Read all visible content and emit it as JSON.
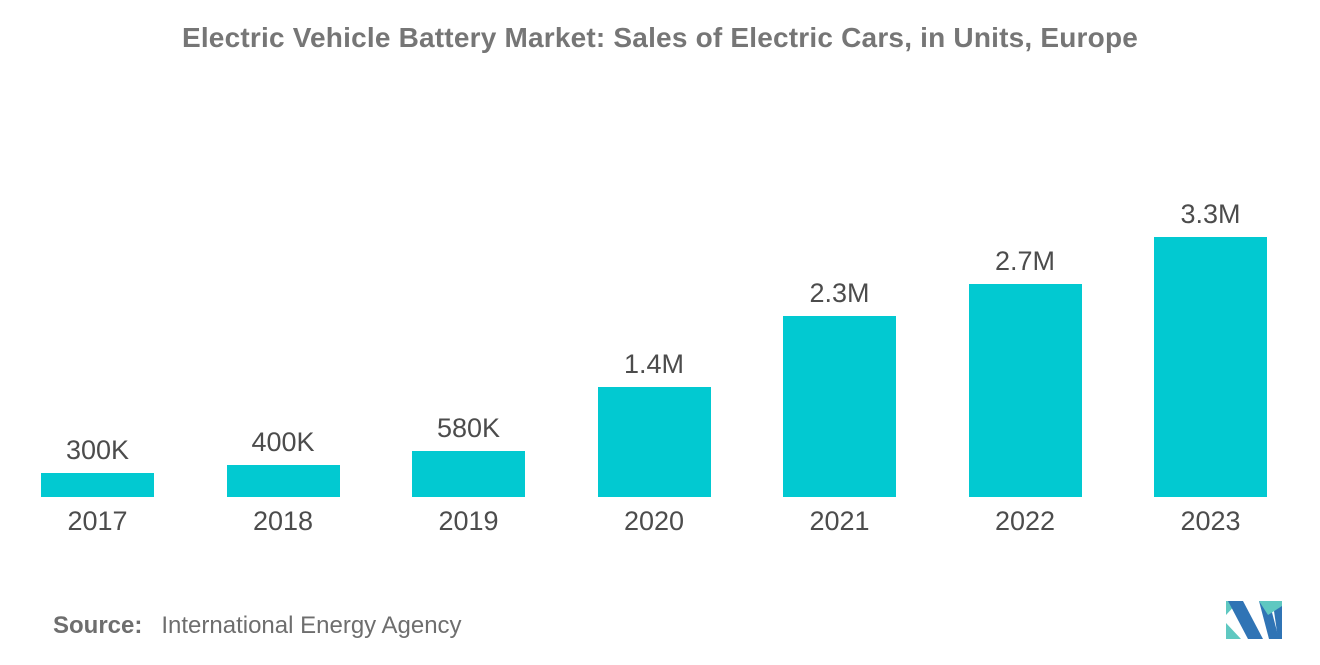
{
  "title": "Electric Vehicle Battery Market: Sales of Electric Cars, in Units, Europe",
  "source": {
    "label": "Source:",
    "text": "International Energy Agency"
  },
  "logo": {
    "icon": "mordor-intelligence-m-monogram",
    "blue": "#3074B5",
    "teal": "#5FC8C1"
  },
  "colors": {
    "bar": "#02C9D1",
    "title": "#767676",
    "label": "#4C4C4C",
    "source": "#6E6E6E",
    "background": "#FFFFFF"
  },
  "chart_data": {
    "type": "bar",
    "title": "Electric Vehicle Battery Market: Sales of Electric Cars, in Units, Europe",
    "categories": [
      "2017",
      "2018",
      "2019",
      "2020",
      "2021",
      "2022",
      "2023"
    ],
    "values": [
      300000,
      400000,
      580000,
      1400000,
      2300000,
      2700000,
      3300000
    ],
    "value_labels": [
      "300K",
      "400K",
      "580K",
      "1.4M",
      "2.3M",
      "2.7M",
      "3.3M"
    ],
    "xlabel": "",
    "ylabel": "",
    "ylim": [
      0,
      3500000
    ],
    "grid": false,
    "legend": false,
    "axis_lines": false,
    "bar_color": "#02C9D1"
  }
}
